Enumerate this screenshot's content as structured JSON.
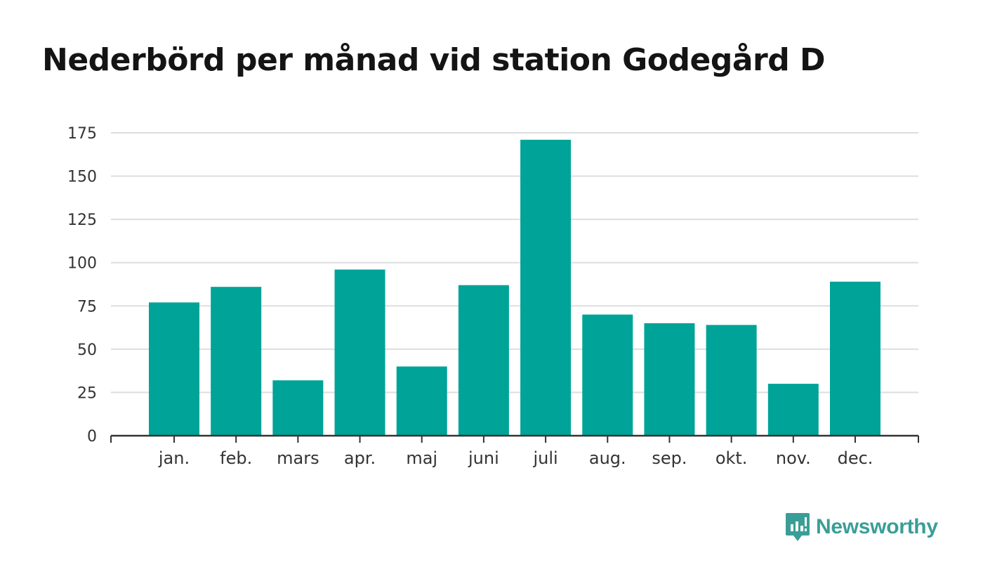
{
  "title": "Nederbörd per månad vid station Godegård D",
  "brand": {
    "name": "Newsworthy",
    "icon": "newsworthy-logo-icon",
    "color": "#3a9e97"
  },
  "chart_data": {
    "type": "bar",
    "title": "Nederbörd per månad vid station Godegård D",
    "xlabel": "",
    "ylabel": "",
    "categories": [
      "jan.",
      "feb.",
      "mars",
      "apr.",
      "maj",
      "juni",
      "juli",
      "aug.",
      "sep.",
      "okt.",
      "nov.",
      "dec."
    ],
    "values": [
      77,
      86,
      32,
      96,
      40,
      87,
      171,
      70,
      65,
      64,
      30,
      89
    ],
    "ylim": [
      0,
      175
    ],
    "yticks": [
      0,
      25,
      50,
      75,
      100,
      125,
      150,
      175
    ],
    "grid": true,
    "legend": "none",
    "bar_color": "#00a398"
  }
}
